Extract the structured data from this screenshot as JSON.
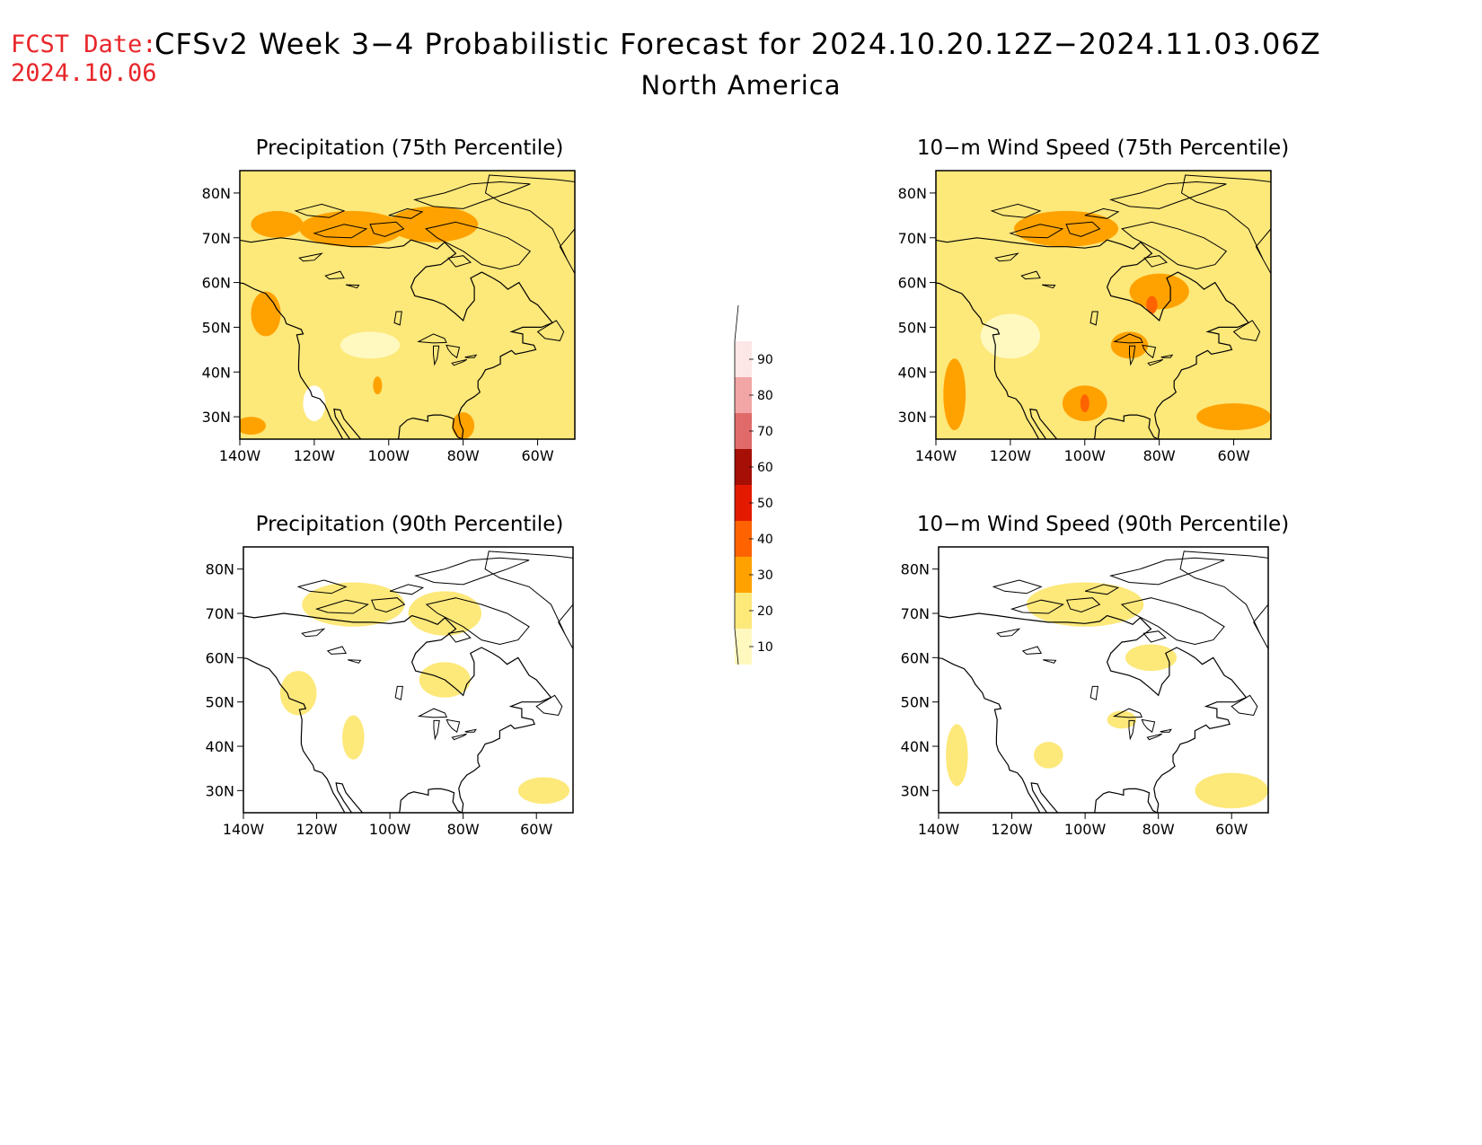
{
  "header": {
    "fcst_label": "FCST Date:",
    "fcst_date": "2024.10.06",
    "title": "CFSv2 Week 3−4 Probabilistic Forecast for 2024.10.20.12Z−2024.11.03.06Z",
    "region": "North America"
  },
  "panels": [
    {
      "id": "precip-75",
      "title": "Precipitation (75th Percentile)",
      "base_level": 20,
      "blob_scale": 1.0
    },
    {
      "id": "wind-75",
      "title": "10−m Wind Speed (75th Percentile)",
      "base_level": 20,
      "blob_scale": 1.25
    },
    {
      "id": "precip-90",
      "title": "Precipitation (90th Percentile)",
      "base_level": 0,
      "blob_scale": 0.6
    },
    {
      "id": "wind-90",
      "title": "10−m Wind Speed (90th Percentile)",
      "base_level": 0,
      "blob_scale": 0.7
    }
  ],
  "axes": {
    "lon_ticks": [
      "140W",
      "120W",
      "100W",
      "80W",
      "60W"
    ],
    "lat_ticks": [
      "80N",
      "70N",
      "60N",
      "50N",
      "40N",
      "30N"
    ],
    "lon_range": [
      -140,
      -50
    ],
    "lat_range": [
      25,
      85
    ]
  },
  "colorbar": {
    "levels": [
      "10",
      "20",
      "30",
      "40",
      "50",
      "60",
      "70",
      "80",
      "90"
    ],
    "colors": [
      "#fff9c0",
      "#fde87a",
      "#ffa200",
      "#ff6300",
      "#e41a00",
      "#a50f05",
      "#e06a6a",
      "#f2a5a5",
      "#fde6e6"
    ]
  },
  "fills": {
    "precip-75": [
      {
        "lon": -110,
        "lat": 72,
        "level": 30,
        "rx": 14,
        "ry": 4
      },
      {
        "lon": -88,
        "lat": 73,
        "level": 30,
        "rx": 12,
        "ry": 4
      },
      {
        "lon": -130,
        "lat": 73,
        "level": 30,
        "rx": 7,
        "ry": 3
      },
      {
        "lon": -133,
        "lat": 53,
        "level": 30,
        "rx": 4,
        "ry": 5
      },
      {
        "lon": -137,
        "lat": 28,
        "level": 30,
        "rx": 4,
        "ry": 2
      },
      {
        "lon": -80,
        "lat": 28,
        "level": 30,
        "rx": 3,
        "ry": 3
      },
      {
        "lon": -103,
        "lat": 37,
        "level": 30,
        "rx": 1.2,
        "ry": 2
      },
      {
        "lon": -105,
        "lat": 46,
        "level": 10,
        "rx": 8,
        "ry": 3
      },
      {
        "lon": -120,
        "lat": 33,
        "level": 0,
        "rx": 3,
        "ry": 4
      }
    ],
    "wind-75": [
      {
        "lon": -105,
        "lat": 72,
        "level": 30,
        "rx": 14,
        "ry": 4
      },
      {
        "lon": -80,
        "lat": 58,
        "level": 30,
        "rx": 8,
        "ry": 4
      },
      {
        "lon": -88,
        "lat": 46,
        "level": 30,
        "rx": 5,
        "ry": 3
      },
      {
        "lon": -100,
        "lat": 33,
        "level": 30,
        "rx": 6,
        "ry": 4
      },
      {
        "lon": -60,
        "lat": 30,
        "level": 30,
        "rx": 10,
        "ry": 3
      },
      {
        "lon": -135,
        "lat": 35,
        "level": 30,
        "rx": 3,
        "ry": 8
      },
      {
        "lon": -82,
        "lat": 55,
        "level": 40,
        "rx": 1.5,
        "ry": 2
      },
      {
        "lon": -100,
        "lat": 33,
        "level": 40,
        "rx": 1.2,
        "ry": 2
      },
      {
        "lon": -120,
        "lat": 48,
        "level": 10,
        "rx": 8,
        "ry": 5
      }
    ],
    "precip-90": [
      {
        "lon": -110,
        "lat": 72,
        "level": 20,
        "rx": 14,
        "ry": 5
      },
      {
        "lon": -85,
        "lat": 70,
        "level": 20,
        "rx": 10,
        "ry": 5
      },
      {
        "lon": -125,
        "lat": 52,
        "level": 20,
        "rx": 5,
        "ry": 5
      },
      {
        "lon": -85,
        "lat": 55,
        "level": 20,
        "rx": 7,
        "ry": 4
      },
      {
        "lon": -58,
        "lat": 30,
        "level": 20,
        "rx": 7,
        "ry": 3
      },
      {
        "lon": -110,
        "lat": 42,
        "level": 20,
        "rx": 3,
        "ry": 5
      }
    ],
    "wind-90": [
      {
        "lon": -100,
        "lat": 72,
        "level": 20,
        "rx": 16,
        "ry": 5
      },
      {
        "lon": -82,
        "lat": 60,
        "level": 20,
        "rx": 7,
        "ry": 3
      },
      {
        "lon": -90,
        "lat": 46,
        "level": 20,
        "rx": 4,
        "ry": 2
      },
      {
        "lon": -60,
        "lat": 30,
        "level": 20,
        "rx": 10,
        "ry": 4
      },
      {
        "lon": -135,
        "lat": 38,
        "level": 20,
        "rx": 3,
        "ry": 7
      },
      {
        "lon": -110,
        "lat": 38,
        "level": 20,
        "rx": 4,
        "ry": 3
      }
    ]
  }
}
